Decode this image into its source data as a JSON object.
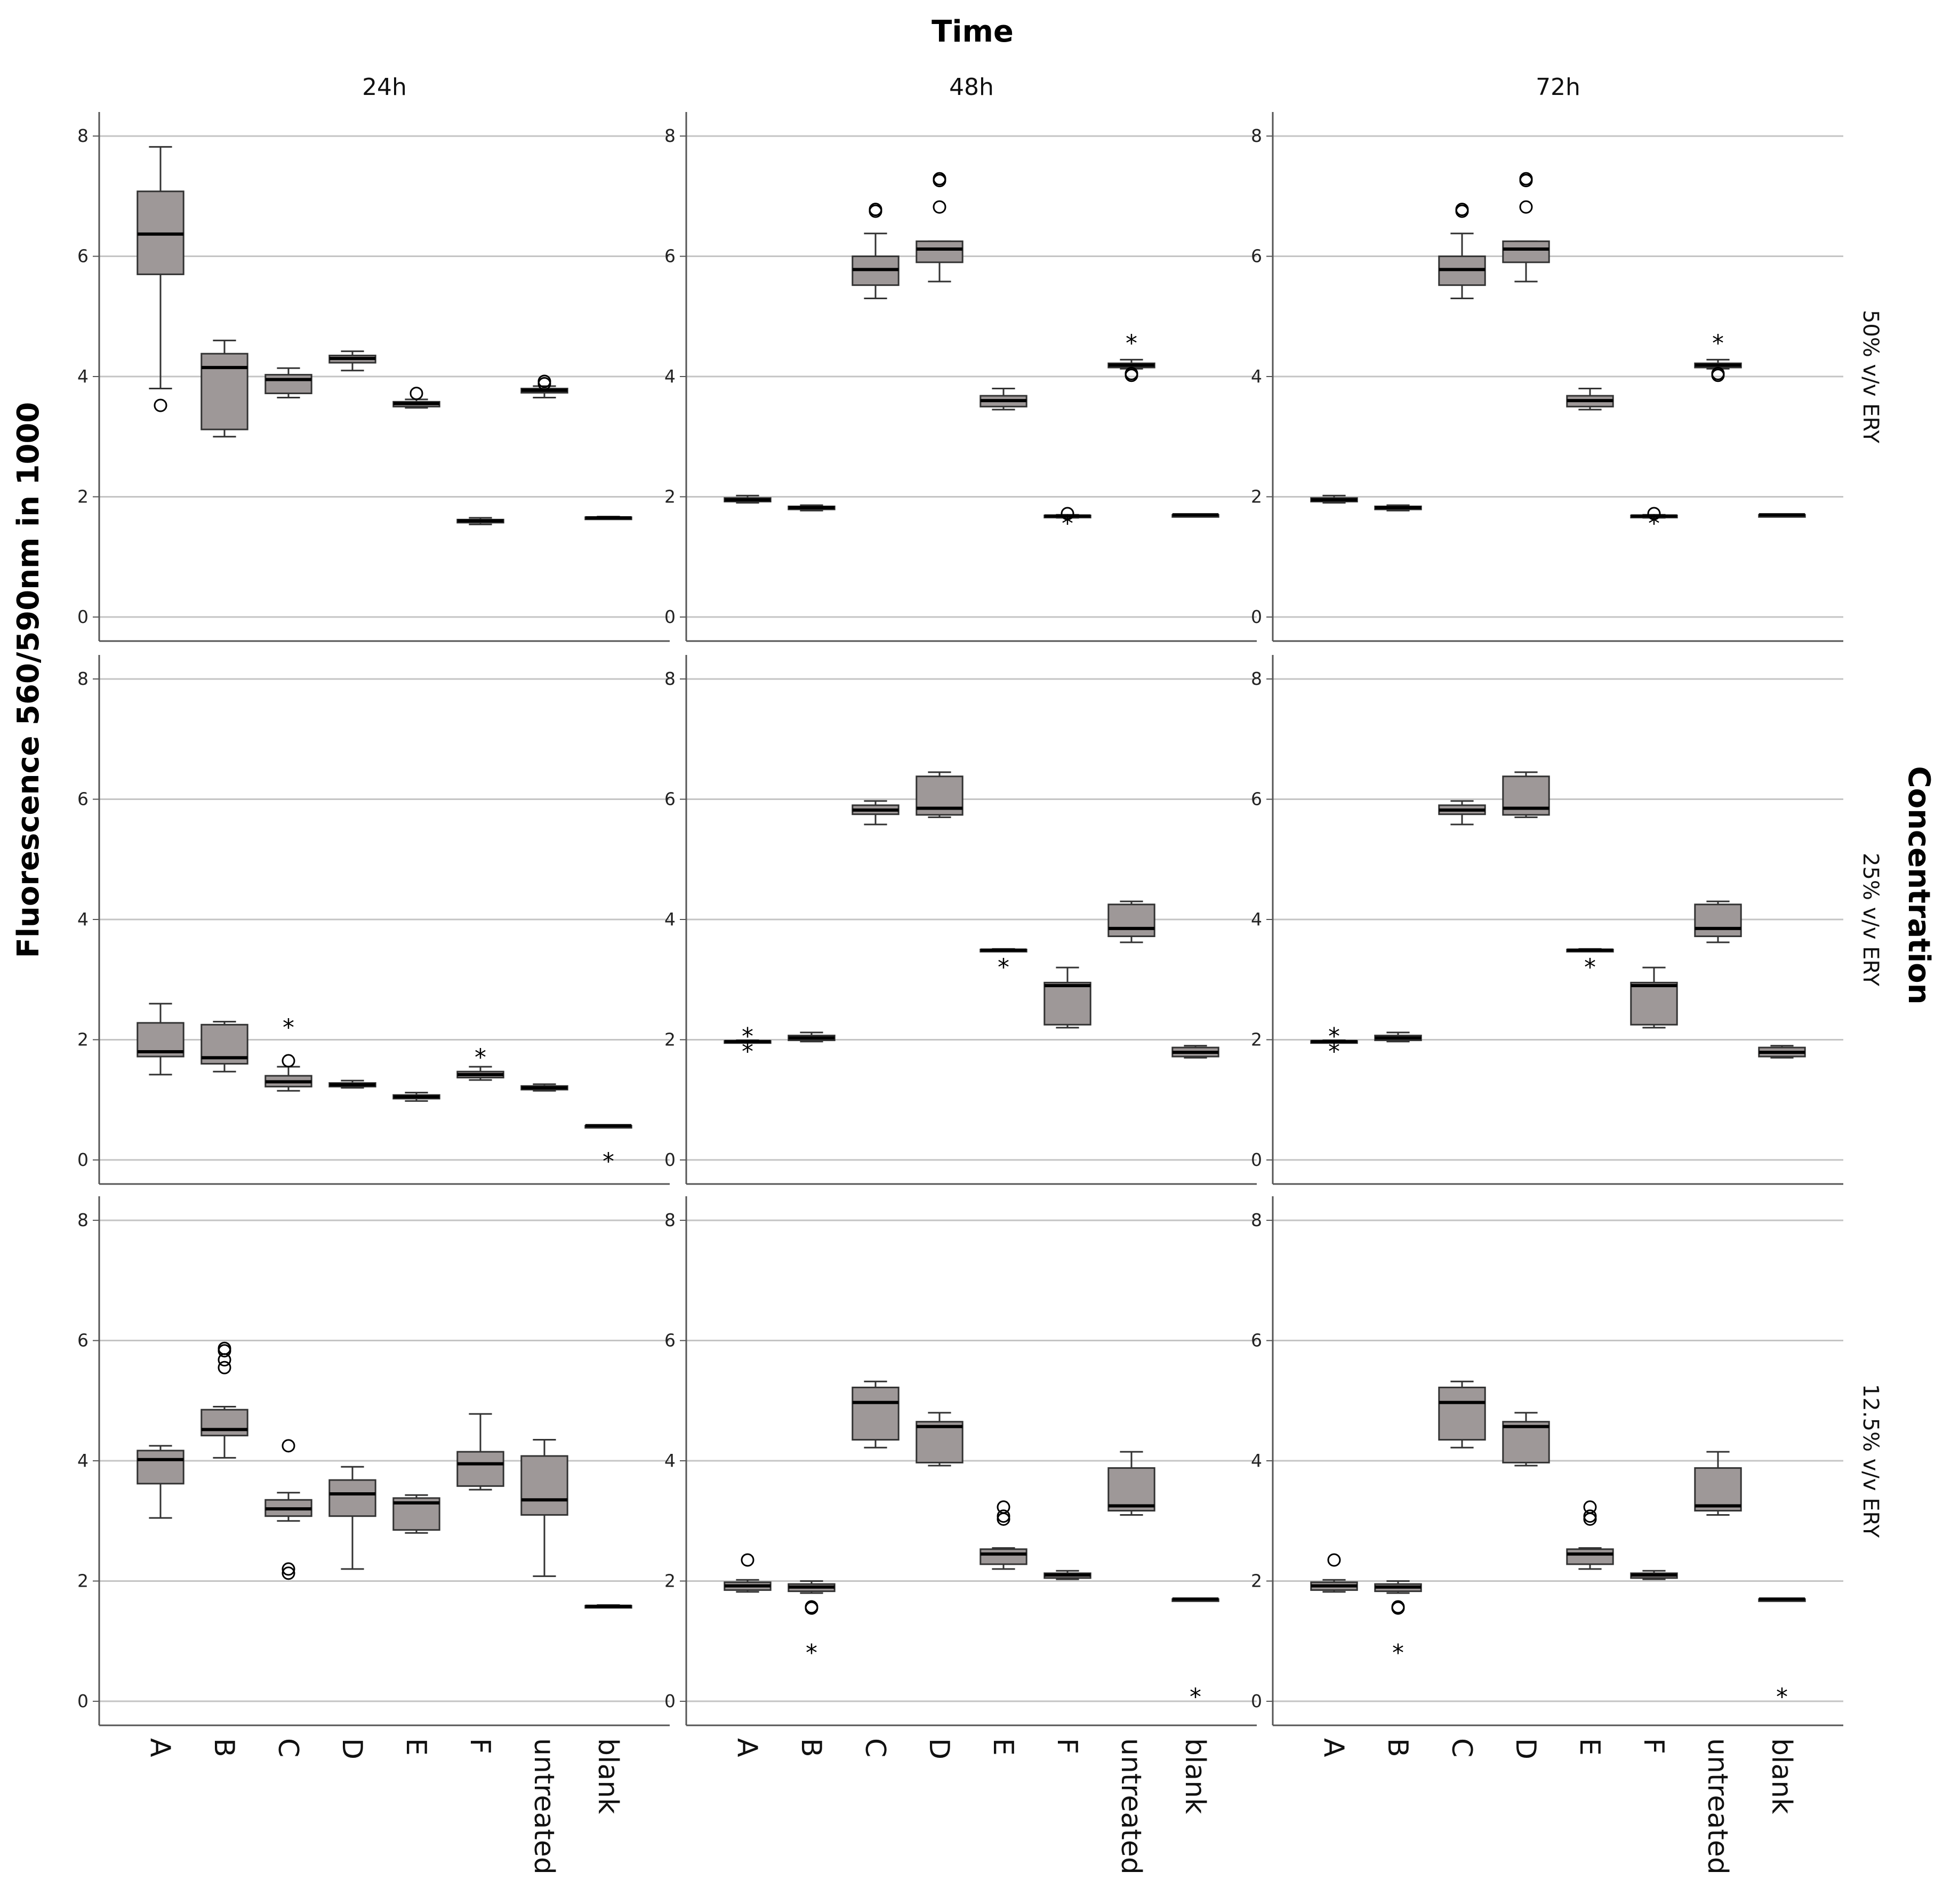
{
  "chart_data": {
    "type": "boxplot",
    "title": "Time",
    "ylabel": "Fluorescence 560/590nm in 1000",
    "row_title": "Concentration",
    "columns": [
      "24h",
      "48h",
      "72h"
    ],
    "rows": [
      "50% v/v ERY",
      "25% v/v ERY",
      "12.5% v/v ERY"
    ],
    "categories": [
      "A",
      "B",
      "C",
      "D",
      "E",
      "F",
      "untreated",
      "blank"
    ],
    "y_ticks": [
      "0",
      "2",
      "4",
      "6",
      "8"
    ],
    "ylim": [
      -0.4,
      8.4
    ],
    "colors": {
      "box_fill": "#9e9898",
      "grid": "#c4c4c4"
    },
    "panels": [
      {
        "row": "50% v/v ERY",
        "col": "24h",
        "boxes": [
          {
            "cat": "A",
            "min": 3.8,
            "q1": 5.7,
            "med": 6.37,
            "q3": 7.08,
            "max": 7.82,
            "outliers": [
              3.52
            ],
            "extremes": []
          },
          {
            "cat": "B",
            "min": 3.0,
            "q1": 3.12,
            "med": 4.15,
            "q3": 4.38,
            "max": 4.6,
            "outliers": [],
            "extremes": []
          },
          {
            "cat": "C",
            "min": 3.65,
            "q1": 3.72,
            "med": 3.95,
            "q3": 4.03,
            "max": 4.14,
            "outliers": [],
            "extremes": []
          },
          {
            "cat": "D",
            "min": 4.1,
            "q1": 4.23,
            "med": 4.3,
            "q3": 4.35,
            "max": 4.42,
            "outliers": [],
            "extremes": []
          },
          {
            "cat": "E",
            "min": 3.48,
            "q1": 3.5,
            "med": 3.55,
            "q3": 3.58,
            "max": 3.62,
            "outliers": [
              3.72
            ],
            "extremes": []
          },
          {
            "cat": "F",
            "min": 1.54,
            "q1": 1.57,
            "med": 1.6,
            "q3": 1.62,
            "max": 1.65,
            "outliers": [],
            "extremes": []
          },
          {
            "cat": "untreated",
            "min": 3.65,
            "q1": 3.73,
            "med": 3.77,
            "q3": 3.8,
            "max": 3.84,
            "outliers": [
              3.88,
              3.92
            ],
            "extremes": []
          },
          {
            "cat": "blank",
            "min": 1.63,
            "q1": 1.64,
            "med": 1.65,
            "q3": 1.66,
            "max": 1.67,
            "outliers": [],
            "extremes": []
          }
        ]
      },
      {
        "row": "50% v/v ERY",
        "col": "48h",
        "boxes": [
          {
            "cat": "A",
            "min": 1.9,
            "q1": 1.92,
            "med": 1.95,
            "q3": 1.98,
            "max": 2.02,
            "outliers": [],
            "extremes": []
          },
          {
            "cat": "B",
            "min": 1.77,
            "q1": 1.79,
            "med": 1.82,
            "q3": 1.84,
            "max": 1.86,
            "outliers": [],
            "extremes": []
          },
          {
            "cat": "C",
            "min": 5.3,
            "q1": 5.52,
            "med": 5.78,
            "q3": 6.0,
            "max": 6.38,
            "outliers": [
              6.75,
              6.78
            ],
            "extremes": []
          },
          {
            "cat": "D",
            "min": 5.58,
            "q1": 5.9,
            "med": 6.12,
            "q3": 6.25,
            "max": 6.25,
            "outliers": [
              6.82,
              7.26,
              7.29
            ],
            "extremes": []
          },
          {
            "cat": "E",
            "min": 3.45,
            "q1": 3.5,
            "med": 3.6,
            "q3": 3.68,
            "max": 3.8,
            "outliers": [],
            "extremes": []
          },
          {
            "cat": "F",
            "min": 1.65,
            "q1": 1.66,
            "med": 1.68,
            "q3": 1.69,
            "max": 1.7,
            "outliers": [
              1.72
            ],
            "extremes": [
              1.6
            ]
          },
          {
            "cat": "untreated",
            "min": 4.13,
            "q1": 4.15,
            "med": 4.19,
            "q3": 4.22,
            "max": 4.28,
            "outliers": [
              4.02,
              4.05
            ],
            "extremes": [
              4.6
            ]
          },
          {
            "cat": "blank",
            "min": 1.68,
            "q1": 1.69,
            "med": 1.7,
            "q3": 1.7,
            "max": 1.71,
            "outliers": [],
            "extremes": []
          }
        ]
      },
      {
        "row": "50% v/v ERY",
        "col": "72h",
        "boxes": [
          {
            "cat": "A",
            "min": 1.9,
            "q1": 1.92,
            "med": 1.95,
            "q3": 1.98,
            "max": 2.02,
            "outliers": [],
            "extremes": []
          },
          {
            "cat": "B",
            "min": 1.77,
            "q1": 1.79,
            "med": 1.82,
            "q3": 1.84,
            "max": 1.86,
            "outliers": [],
            "extremes": []
          },
          {
            "cat": "C",
            "min": 5.3,
            "q1": 5.52,
            "med": 5.78,
            "q3": 6.0,
            "max": 6.38,
            "outliers": [
              6.75,
              6.78
            ],
            "extremes": []
          },
          {
            "cat": "D",
            "min": 5.58,
            "q1": 5.9,
            "med": 6.12,
            "q3": 6.25,
            "max": 6.25,
            "outliers": [
              6.82,
              7.26,
              7.29
            ],
            "extremes": []
          },
          {
            "cat": "E",
            "min": 3.45,
            "q1": 3.5,
            "med": 3.6,
            "q3": 3.68,
            "max": 3.8,
            "outliers": [],
            "extremes": []
          },
          {
            "cat": "F",
            "min": 1.65,
            "q1": 1.66,
            "med": 1.68,
            "q3": 1.69,
            "max": 1.7,
            "outliers": [
              1.72
            ],
            "extremes": [
              1.6
            ]
          },
          {
            "cat": "untreated",
            "min": 4.13,
            "q1": 4.15,
            "med": 4.19,
            "q3": 4.22,
            "max": 4.28,
            "outliers": [
              4.02,
              4.05
            ],
            "extremes": [
              4.6
            ]
          },
          {
            "cat": "blank",
            "min": 1.68,
            "q1": 1.69,
            "med": 1.7,
            "q3": 1.7,
            "max": 1.71,
            "outliers": [],
            "extremes": []
          }
        ]
      },
      {
        "row": "25% v/v ERY",
        "col": "24h",
        "boxes": [
          {
            "cat": "A",
            "min": 1.42,
            "q1": 1.72,
            "med": 1.8,
            "q3": 2.28,
            "max": 2.6,
            "outliers": [],
            "extremes": []
          },
          {
            "cat": "B",
            "min": 1.47,
            "q1": 1.6,
            "med": 1.7,
            "q3": 2.25,
            "max": 2.3,
            "outliers": [],
            "extremes": []
          },
          {
            "cat": "C",
            "min": 1.15,
            "q1": 1.22,
            "med": 1.3,
            "q3": 1.4,
            "max": 1.55,
            "outliers": [
              1.65
            ],
            "extremes": [
              2.25
            ]
          },
          {
            "cat": "D",
            "min": 1.2,
            "q1": 1.22,
            "med": 1.25,
            "q3": 1.28,
            "max": 1.32,
            "outliers": [],
            "extremes": []
          },
          {
            "cat": "E",
            "min": 0.98,
            "q1": 1.02,
            "med": 1.05,
            "q3": 1.08,
            "max": 1.12,
            "outliers": [],
            "extremes": []
          },
          {
            "cat": "F",
            "min": 1.33,
            "q1": 1.37,
            "med": 1.42,
            "q3": 1.47,
            "max": 1.55,
            "outliers": [],
            "extremes": [
              1.75
            ]
          },
          {
            "cat": "untreated",
            "min": 1.15,
            "q1": 1.17,
            "med": 1.2,
            "q3": 1.23,
            "max": 1.26,
            "outliers": [],
            "extremes": []
          },
          {
            "cat": "blank",
            "min": 0.55,
            "q1": 0.56,
            "med": 0.57,
            "q3": 0.57,
            "max": 0.58,
            "outliers": [],
            "extremes": [
              0.02
            ]
          }
        ]
      },
      {
        "row": "25% v/v ERY",
        "col": "48h",
        "boxes": [
          {
            "cat": "A",
            "min": 1.95,
            "q1": 1.96,
            "med": 1.97,
            "q3": 1.98,
            "max": 1.99,
            "outliers": [],
            "extremes": [
              2.1,
              1.85
            ]
          },
          {
            "cat": "B",
            "min": 1.97,
            "q1": 1.99,
            "med": 2.03,
            "q3": 2.07,
            "max": 2.12,
            "outliers": [],
            "extremes": []
          },
          {
            "cat": "C",
            "min": 5.58,
            "q1": 5.75,
            "med": 5.82,
            "q3": 5.9,
            "max": 5.97,
            "outliers": [],
            "extremes": []
          },
          {
            "cat": "D",
            "min": 5.7,
            "q1": 5.74,
            "med": 5.85,
            "q3": 6.38,
            "max": 6.45,
            "outliers": [],
            "extremes": []
          },
          {
            "cat": "E",
            "min": 3.47,
            "q1": 3.48,
            "med": 3.49,
            "q3": 3.5,
            "max": 3.51,
            "outliers": [],
            "extremes": [
              3.25
            ]
          },
          {
            "cat": "F",
            "min": 2.2,
            "q1": 2.25,
            "med": 2.9,
            "q3": 2.95,
            "max": 3.2,
            "outliers": [],
            "extremes": []
          },
          {
            "cat": "untreated",
            "min": 3.62,
            "q1": 3.72,
            "med": 3.85,
            "q3": 4.25,
            "max": 4.3,
            "outliers": [],
            "extremes": []
          },
          {
            "cat": "blank",
            "min": 1.7,
            "q1": 1.72,
            "med": 1.79,
            "q3": 1.87,
            "max": 1.9,
            "outliers": [],
            "extremes": []
          }
        ]
      },
      {
        "row": "25% v/v ERY",
        "col": "72h",
        "boxes": [
          {
            "cat": "A",
            "min": 1.95,
            "q1": 1.96,
            "med": 1.97,
            "q3": 1.98,
            "max": 1.99,
            "outliers": [],
            "extremes": [
              2.1,
              1.85
            ]
          },
          {
            "cat": "B",
            "min": 1.97,
            "q1": 1.99,
            "med": 2.03,
            "q3": 2.07,
            "max": 2.12,
            "outliers": [],
            "extremes": []
          },
          {
            "cat": "C",
            "min": 5.58,
            "q1": 5.75,
            "med": 5.82,
            "q3": 5.9,
            "max": 5.97,
            "outliers": [],
            "extremes": []
          },
          {
            "cat": "D",
            "min": 5.7,
            "q1": 5.74,
            "med": 5.85,
            "q3": 6.38,
            "max": 6.45,
            "outliers": [],
            "extremes": []
          },
          {
            "cat": "E",
            "min": 3.47,
            "q1": 3.48,
            "med": 3.49,
            "q3": 3.5,
            "max": 3.51,
            "outliers": [],
            "extremes": [
              3.25
            ]
          },
          {
            "cat": "F",
            "min": 2.2,
            "q1": 2.25,
            "med": 2.9,
            "q3": 2.95,
            "max": 3.2,
            "outliers": [],
            "extremes": []
          },
          {
            "cat": "untreated",
            "min": 3.62,
            "q1": 3.72,
            "med": 3.85,
            "q3": 4.25,
            "max": 4.3,
            "outliers": [],
            "extremes": []
          },
          {
            "cat": "blank",
            "min": 1.7,
            "q1": 1.72,
            "med": 1.79,
            "q3": 1.87,
            "max": 1.9,
            "outliers": [],
            "extremes": []
          }
        ]
      },
      {
        "row": "12.5% v/v ERY",
        "col": "24h",
        "boxes": [
          {
            "cat": "A",
            "min": 3.05,
            "q1": 3.62,
            "med": 4.02,
            "q3": 4.17,
            "max": 4.25,
            "outliers": [],
            "extremes": []
          },
          {
            "cat": "B",
            "min": 4.05,
            "q1": 4.42,
            "med": 4.52,
            "q3": 4.85,
            "max": 4.9,
            "outliers": [
              5.55,
              5.68,
              5.83,
              5.87
            ],
            "extremes": []
          },
          {
            "cat": "C",
            "min": 3.0,
            "q1": 3.08,
            "med": 3.2,
            "q3": 3.35,
            "max": 3.47,
            "outliers": [
              4.25,
              2.2,
              2.13
            ],
            "extremes": []
          },
          {
            "cat": "D",
            "min": 2.2,
            "q1": 3.08,
            "med": 3.45,
            "q3": 3.68,
            "max": 3.9,
            "outliers": [],
            "extremes": []
          },
          {
            "cat": "E",
            "min": 2.8,
            "q1": 2.85,
            "med": 3.3,
            "q3": 3.38,
            "max": 3.43,
            "outliers": [],
            "extremes": []
          },
          {
            "cat": "F",
            "min": 3.52,
            "q1": 3.58,
            "med": 3.95,
            "q3": 4.15,
            "max": 4.78,
            "outliers": [],
            "extremes": []
          },
          {
            "cat": "untreated",
            "min": 2.08,
            "q1": 3.1,
            "med": 3.35,
            "q3": 4.08,
            "max": 4.35,
            "outliers": [],
            "extremes": []
          },
          {
            "cat": "blank",
            "min": 1.56,
            "q1": 1.57,
            "med": 1.58,
            "q3": 1.59,
            "max": 1.6,
            "outliers": [],
            "extremes": []
          }
        ]
      },
      {
        "row": "12.5% v/v ERY",
        "col": "48h",
        "boxes": [
          {
            "cat": "A",
            "min": 1.82,
            "q1": 1.85,
            "med": 1.92,
            "q3": 1.98,
            "max": 2.02,
            "outliers": [
              2.35
            ],
            "extremes": []
          },
          {
            "cat": "B",
            "min": 1.8,
            "q1": 1.83,
            "med": 1.9,
            "q3": 1.95,
            "max": 2.0,
            "outliers": [
              1.55,
              1.57
            ],
            "extremes": [
              0.85
            ]
          },
          {
            "cat": "C",
            "min": 4.22,
            "q1": 4.35,
            "med": 4.97,
            "q3": 5.22,
            "max": 5.32,
            "outliers": [],
            "extremes": []
          },
          {
            "cat": "D",
            "min": 3.92,
            "q1": 3.97,
            "med": 4.57,
            "q3": 4.65,
            "max": 4.8,
            "outliers": [],
            "extremes": []
          },
          {
            "cat": "E",
            "min": 2.2,
            "q1": 2.28,
            "med": 2.45,
            "q3": 2.53,
            "max": 2.55,
            "outliers": [
              3.03,
              3.08,
              3.23
            ],
            "extremes": []
          },
          {
            "cat": "F",
            "min": 2.03,
            "q1": 2.05,
            "med": 2.1,
            "q3": 2.13,
            "max": 2.17,
            "outliers": [],
            "extremes": []
          },
          {
            "cat": "untreated",
            "min": 3.1,
            "q1": 3.17,
            "med": 3.25,
            "q3": 3.88,
            "max": 4.15,
            "outliers": [],
            "extremes": []
          },
          {
            "cat": "blank",
            "min": 1.68,
            "q1": 1.69,
            "med": 1.7,
            "q3": 1.7,
            "max": 1.71,
            "outliers": [],
            "extremes": [
              0.12
            ]
          }
        ]
      },
      {
        "row": "12.5% v/v ERY",
        "col": "72h",
        "boxes": [
          {
            "cat": "A",
            "min": 1.82,
            "q1": 1.85,
            "med": 1.92,
            "q3": 1.98,
            "max": 2.02,
            "outliers": [
              2.35
            ],
            "extremes": []
          },
          {
            "cat": "B",
            "min": 1.8,
            "q1": 1.83,
            "med": 1.9,
            "q3": 1.95,
            "max": 2.0,
            "outliers": [
              1.55,
              1.57
            ],
            "extremes": [
              0.85
            ]
          },
          {
            "cat": "C",
            "min": 4.22,
            "q1": 4.35,
            "med": 4.97,
            "q3": 5.22,
            "max": 5.32,
            "outliers": [],
            "extremes": []
          },
          {
            "cat": "D",
            "min": 3.92,
            "q1": 3.97,
            "med": 4.57,
            "q3": 4.65,
            "max": 4.8,
            "outliers": [],
            "extremes": []
          },
          {
            "cat": "E",
            "min": 2.2,
            "q1": 2.28,
            "med": 2.45,
            "q3": 2.53,
            "max": 2.55,
            "outliers": [
              3.03,
              3.08,
              3.23
            ],
            "extremes": []
          },
          {
            "cat": "F",
            "min": 2.03,
            "q1": 2.05,
            "med": 2.1,
            "q3": 2.13,
            "max": 2.17,
            "outliers": [],
            "extremes": []
          },
          {
            "cat": "untreated",
            "min": 3.1,
            "q1": 3.17,
            "med": 3.25,
            "q3": 3.88,
            "max": 4.15,
            "outliers": [],
            "extremes": []
          },
          {
            "cat": "blank",
            "min": 1.68,
            "q1": 1.69,
            "med": 1.7,
            "q3": 1.7,
            "max": 1.71,
            "outliers": [],
            "extremes": [
              0.12
            ]
          }
        ]
      }
    ]
  }
}
